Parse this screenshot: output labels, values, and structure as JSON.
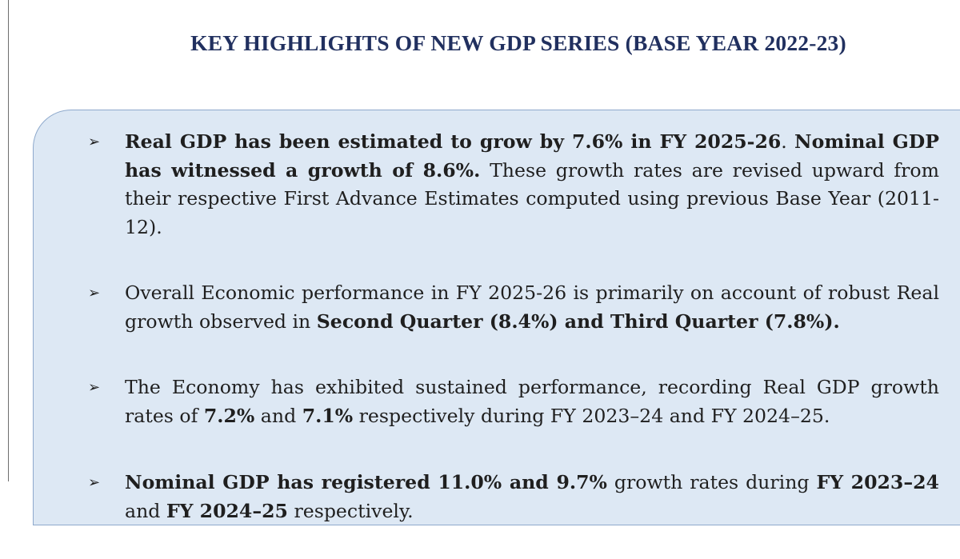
{
  "title": "KEY HIGHLIGHTS OF NEW GDP SERIES (BASE YEAR 2022-23)",
  "bullet_marker": "➢",
  "bullets": [
    {
      "t1": "Real GDP has been estimated to grow by 7.6% in FY 2025-26",
      "t2": ". ",
      "t3": "Nominal GDP has witnessed a growth of 8.6%.",
      "t4": " These growth rates are revised upward from their respective First Advance Estimates computed using previous Base Year (2011-12)."
    },
    {
      "t1": "Overall Economic performance in FY 2025-26 is primarily on account of robust Real growth observed in ",
      "t2": "Second Quarter (8.4%) and Third Quarter (7.8%)."
    },
    {
      "t1": "The Economy has exhibited sustained performance, recording Real GDP growth rates of ",
      "t2": "7.2%",
      "t3": " and ",
      "t4": "7.1%",
      "t5": " respectively during FY 2023–24 and FY 2024–25."
    },
    {
      "t1": "Nominal GDP has registered 11.0% and 9.7%",
      "t2": " growth rates during ",
      "t3": "FY 2023–24",
      "t4": " and ",
      "t5": "FY 2024–25",
      "t6": " respectively."
    }
  ]
}
